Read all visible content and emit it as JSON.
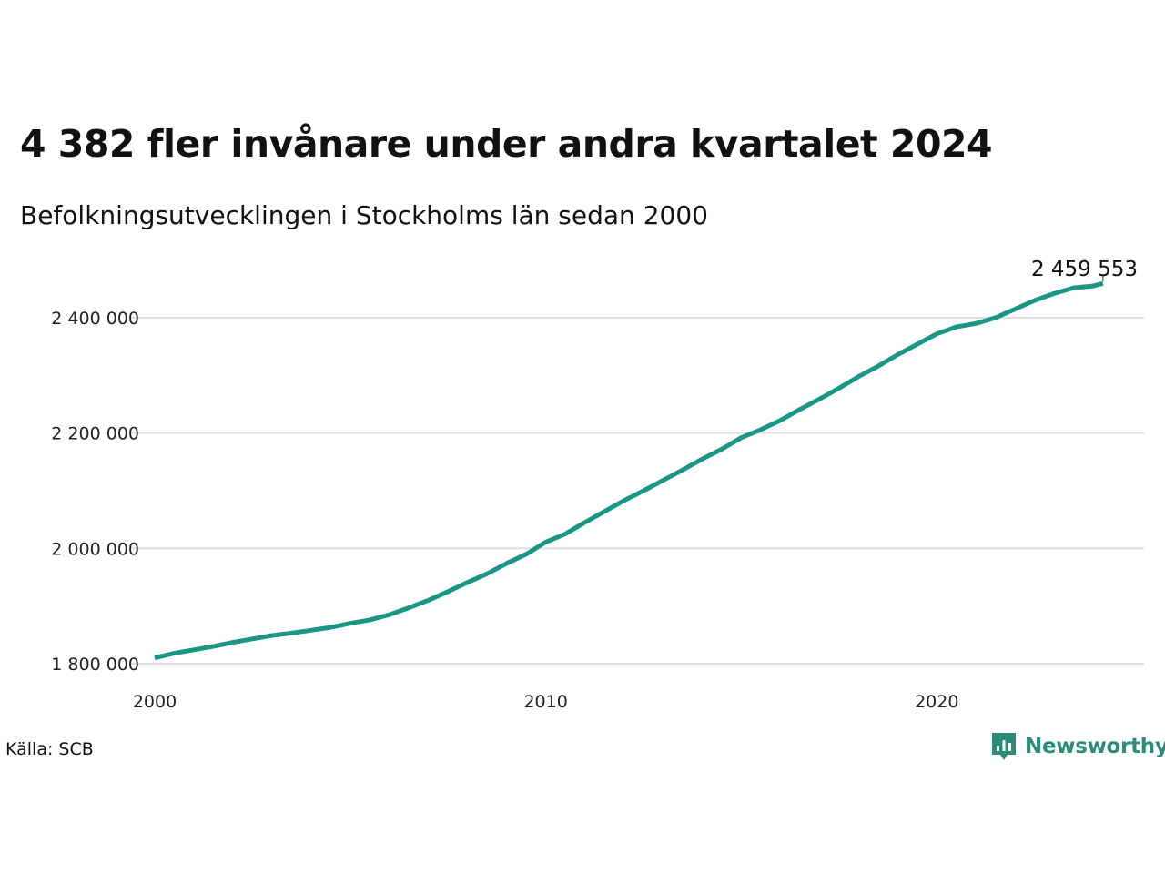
{
  "title": "4 382 fler invånare under andra kvartalet 2024",
  "subtitle": "Befolkningsutvecklingen i Stockholms län sedan 2000",
  "source": "Källa: SCB",
  "brand": {
    "name": "Newsworthy",
    "icon": "bar-chart-speech-bubble-icon",
    "color": "#2c8c7a"
  },
  "colors": {
    "line": "#1a9685",
    "grid": "#e0e0e0"
  },
  "chart_data": {
    "type": "line",
    "title": "4 382 fler invånare under andra kvartalet 2024",
    "subtitle": "Befolkningsutvecklingen i Stockholms län sedan 2000",
    "xlabel": "",
    "ylabel": "",
    "xlim": [
      2000,
      2025.3
    ],
    "ylim": [
      1800000,
      2460000
    ],
    "grid": true,
    "legend": "none",
    "x_ticks": [
      2000,
      2010,
      2020
    ],
    "x_tick_labels": [
      "2000",
      "2010",
      "2020"
    ],
    "y_ticks": [
      1800000,
      2000000,
      2200000,
      2400000
    ],
    "y_tick_labels": [
      "1 800 000",
      "2 000 000",
      "2 200 000",
      "2 400 000"
    ],
    "end_label": "2 459 553",
    "series": [
      {
        "x": [
          2000.0,
          2000.5,
          2001.0,
          2001.5,
          2002.0,
          2002.5,
          2003.0,
          2003.5,
          2004.0,
          2004.5,
          2005.0,
          2005.5,
          2006.0,
          2006.5,
          2007.0,
          2007.5,
          2008.0,
          2008.5,
          2009.0,
          2009.5,
          2010.0,
          2010.5,
          2011.0,
          2011.5,
          2012.0,
          2012.5,
          2013.0,
          2013.5,
          2014.0,
          2014.5,
          2015.0,
          2015.5,
          2016.0,
          2016.5,
          2017.0,
          2017.5,
          2018.0,
          2018.5,
          2019.0,
          2019.5,
          2020.0,
          2020.5,
          2021.0,
          2021.5,
          2022.0,
          2022.5,
          2023.0,
          2023.5,
          2024.0,
          2024.25
        ],
        "values": [
          1810000,
          1818000,
          1824000,
          1830000,
          1837000,
          1843000,
          1849000,
          1853000,
          1858000,
          1863000,
          1870000,
          1876000,
          1885000,
          1897000,
          1910000,
          1925000,
          1941000,
          1956000,
          1974000,
          1990000,
          2011000,
          2025000,
          2045000,
          2064000,
          2083000,
          2100000,
          2118000,
          2136000,
          2155000,
          2172000,
          2192000,
          2206000,
          2222000,
          2241000,
          2259000,
          2278000,
          2298000,
          2316000,
          2336000,
          2354000,
          2372000,
          2384000,
          2390000,
          2400000,
          2415000,
          2430000,
          2442000,
          2452000,
          2455171,
          2459553
        ]
      }
    ]
  }
}
